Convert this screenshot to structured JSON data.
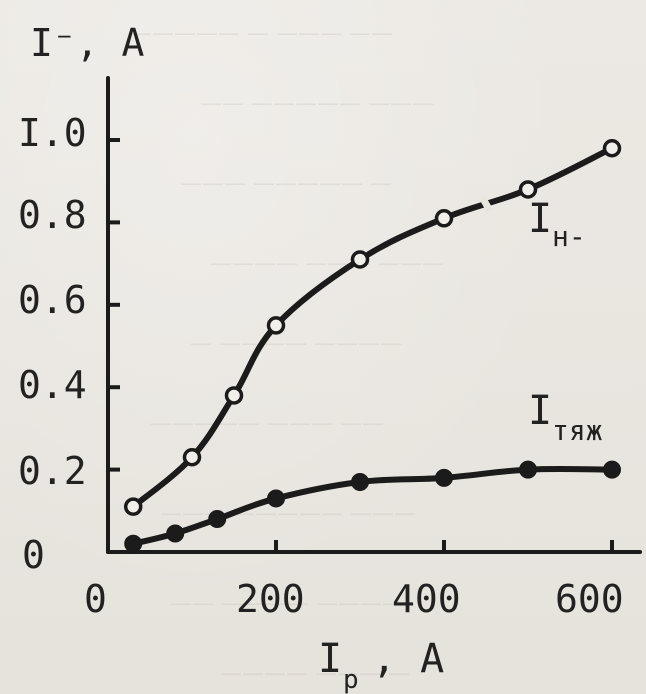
{
  "chart_data": {
    "type": "line",
    "ylabel": "I⁻, A",
    "xlabel_main": "I",
    "xlabel_sub": "p",
    "xlabel_unit": ", A",
    "xlim": [
      0,
      630
    ],
    "ylim": [
      0,
      1.08
    ],
    "x_ticks": [
      0,
      200,
      400,
      600
    ],
    "x_tick_labels": [
      "0",
      "200",
      "400",
      "600"
    ],
    "y_ticks": [
      0,
      0.2,
      0.4,
      0.6,
      0.8,
      1.0
    ],
    "y_tick_labels": [
      "0",
      "0.2",
      "0.4",
      "0.6",
      "0.8",
      "I.0"
    ],
    "grid": false,
    "series": [
      {
        "name_main": "I",
        "name_sub": "н‑",
        "marker": "open-circle",
        "x": [
          30,
          100,
          150,
          200,
          300,
          400,
          500,
          600
        ],
        "y": [
          0.11,
          0.23,
          0.38,
          0.55,
          0.71,
          0.81,
          0.88,
          0.98
        ],
        "gap_between_index": [
          5,
          6
        ]
      },
      {
        "name_main": "I",
        "name_sub": "тяж",
        "marker": "filled-circle",
        "x": [
          30,
          80,
          130,
          200,
          300,
          400,
          500,
          600
        ],
        "y": [
          0.02,
          0.045,
          0.08,
          0.13,
          0.17,
          0.18,
          0.2,
          0.2
        ]
      }
    ]
  }
}
